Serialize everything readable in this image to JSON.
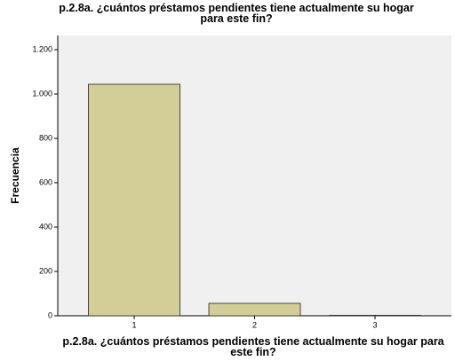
{
  "chart_data": {
    "type": "bar",
    "title": "p.2.8a. ¿cuántos préstamos pendientes tiene actualmente su hogar para este fin?",
    "x_label": "p.2.8a. ¿cuántos préstamos pendientes tiene actualmente su hogar para este fin?",
    "y_label": "Frecuencia",
    "categories": [
      "1",
      "2",
      "3"
    ],
    "values": [
      1044,
      56,
      2
    ],
    "color": "#d3ce97",
    "ylim": [
      0,
      1264
    ],
    "yticks": [
      0,
      200,
      400,
      600,
      800,
      {
        "value": 1000,
        "label": "1.000"
      },
      {
        "value": 1200,
        "label": "1.200"
      }
    ]
  }
}
